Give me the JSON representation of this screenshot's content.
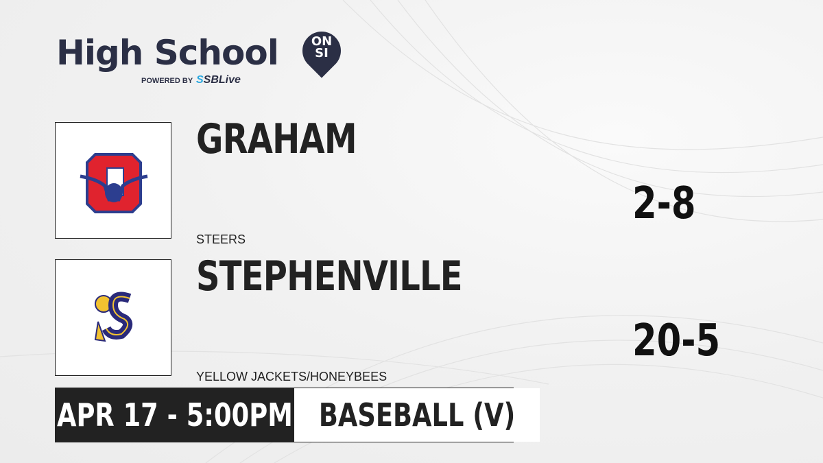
{
  "brand": {
    "title": "High School",
    "badge_top": "ON",
    "badge_bottom": "SI",
    "powered_by": "POWERED BY",
    "partner_a": "S",
    "partner_b": "SBLive"
  },
  "home": {
    "name": "GRAHAM",
    "mascot": "STEERS",
    "record": "2-8",
    "logo_colors": [
      "#e0232e",
      "#2c3e8f"
    ]
  },
  "away": {
    "name": "STEPHENVILLE",
    "mascot": "YELLOW JACKETS/HONEYBEES",
    "record": "20-5",
    "logo_colors": [
      "#2a2a7a",
      "#f2c230"
    ]
  },
  "game": {
    "datetime": "APR 17 - 5:00PM",
    "sport": "BASEBALL (V)"
  }
}
